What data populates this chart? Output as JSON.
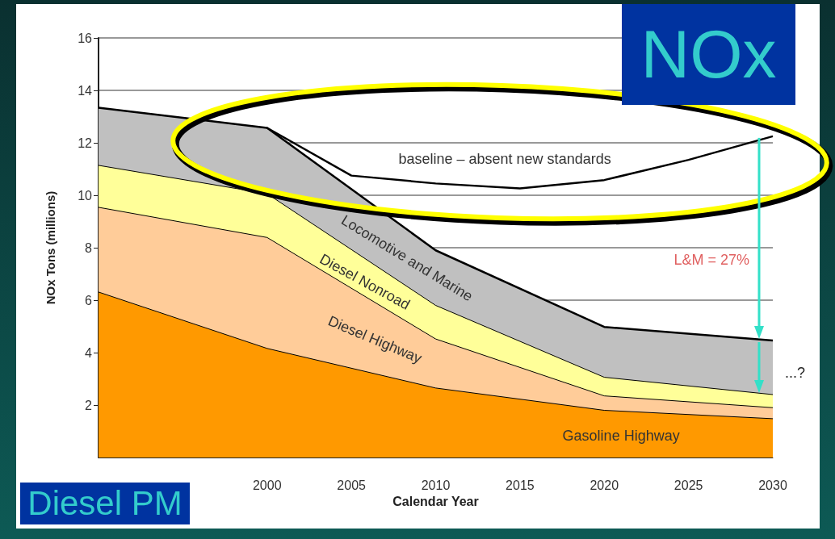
{
  "chart_data": {
    "type": "area",
    "stacked": true,
    "title": "NOx",
    "xlabel": "Calendar Year",
    "ylabel": "NOx Tons (millions)",
    "x": [
      1990,
      2000,
      2010,
      2020,
      2030
    ],
    "series": [
      {
        "name": "Gasoline Highway",
        "color": "#ff9900",
        "values": [
          6.31,
          4.16,
          2.65,
          1.8,
          1.48
        ]
      },
      {
        "name": "Diesel Highway",
        "color": "#ffcc99",
        "values": [
          3.23,
          4.23,
          1.87,
          0.55,
          0.42
        ]
      },
      {
        "name": "Diesel Nonroad",
        "color": "#ffff99",
        "values": [
          1.6,
          1.67,
          1.28,
          0.71,
          0.5
        ]
      },
      {
        "name": "Locomotive and Marine",
        "color": "#c0c0c0",
        "values": [
          2.2,
          2.51,
          2.1,
          1.92,
          2.06
        ]
      },
      {
        "name": "baseline – absent new standards",
        "type": "line",
        "color": "#000000",
        "x": [
          2000,
          2005,
          2010,
          2015,
          2020,
          2025,
          2030
        ],
        "values": [
          12.57,
          10.75,
          10.45,
          10.26,
          10.58,
          11.35,
          12.25
        ]
      }
    ],
    "xlim": [
      1990,
      2030
    ],
    "xticks": [
      2000,
      2005,
      2010,
      2015,
      2020,
      2025,
      2030
    ],
    "ylim": [
      0,
      16
    ],
    "yticks": [
      2,
      4,
      6,
      8,
      10,
      12,
      14,
      16
    ],
    "grid": "y",
    "legend": false,
    "marker": "none",
    "annotations": [
      "L&M = 27%",
      "...?",
      "Diesel PM"
    ]
  }
}
